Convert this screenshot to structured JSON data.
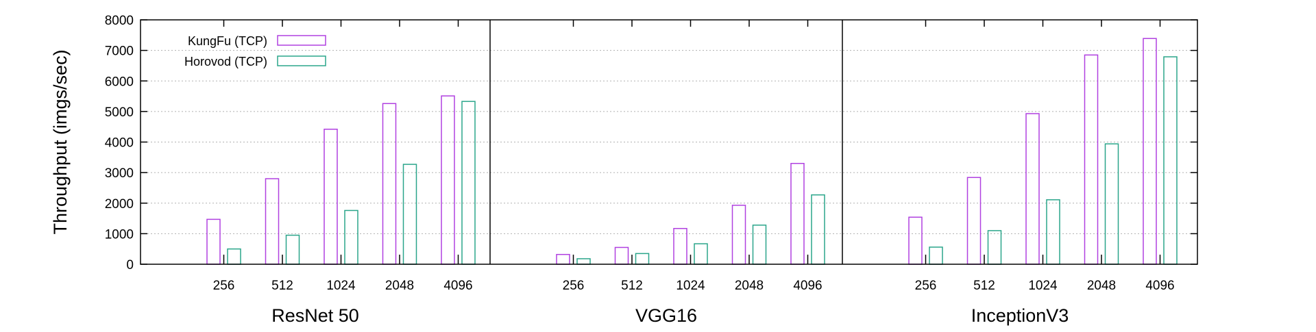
{
  "chart_data": {
    "type": "bar",
    "ylabel": "Throughput (imgs/sec)",
    "ylim": [
      0,
      8000
    ],
    "yticks": [
      0,
      1000,
      2000,
      3000,
      4000,
      5000,
      6000,
      7000,
      8000
    ],
    "grid": "horizontal dotted",
    "legend_position": "top-left",
    "categories": [
      "256",
      "512",
      "1024",
      "2048",
      "4096"
    ],
    "series_meta": [
      {
        "name": "KungFu (TCP)",
        "color": "#b040e0"
      },
      {
        "name": "Horovod (TCP)",
        "color": "#2aa58a"
      }
    ],
    "panels": [
      {
        "title": "ResNet 50",
        "series": [
          {
            "name": "KungFu (TCP)",
            "values": [
              1470,
              2800,
              4420,
              5260,
              5510
            ]
          },
          {
            "name": "Horovod (TCP)",
            "values": [
              500,
              950,
              1760,
              3270,
              5330
            ]
          }
        ]
      },
      {
        "title": "VGG16",
        "series": [
          {
            "name": "KungFu (TCP)",
            "values": [
              320,
              550,
              1170,
              1930,
              3300
            ]
          },
          {
            "name": "Horovod (TCP)",
            "values": [
              180,
              350,
              670,
              1280,
              2270
            ]
          }
        ]
      },
      {
        "title": "InceptionV3",
        "series": [
          {
            "name": "KungFu (TCP)",
            "values": [
              1540,
              2840,
              4930,
              6850,
              7390
            ]
          },
          {
            "name": "Horovod (TCP)",
            "values": [
              560,
              1100,
              2110,
              3940,
              6790
            ]
          }
        ]
      }
    ]
  }
}
